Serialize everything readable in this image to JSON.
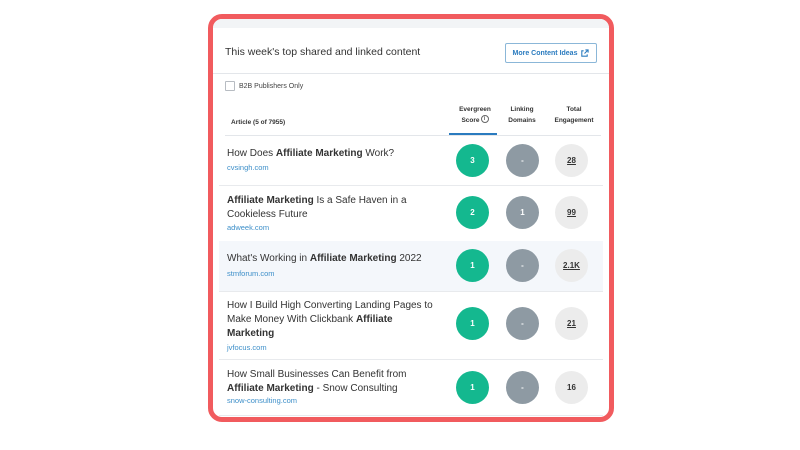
{
  "header": {
    "title": "This week's top shared and linked content",
    "ideas_button": "More Content Ideas"
  },
  "filter": {
    "label": "B2B Publishers Only",
    "checked": false
  },
  "columns": {
    "article": "Article (5 of 7955)",
    "evergreen_1": "Evergreen",
    "evergreen_2": "Score",
    "linking_1": "Linking",
    "linking_2": "Domains",
    "total_1": "Total",
    "total_2": "Engagement"
  },
  "rows": [
    {
      "title_parts": [
        [
          "How Does ",
          false
        ],
        [
          "Affiliate Marketing",
          true
        ],
        [
          " Work?",
          false
        ]
      ],
      "domain": "cvsingh.com",
      "evergreen": "3",
      "linking": "-",
      "total": "28"
    },
    {
      "title_parts": [
        [
          "Affiliate Marketing",
          true
        ],
        [
          " Is a Safe Haven in a Cookieless Future",
          false
        ]
      ],
      "domain": "adweek.com",
      "evergreen": "2",
      "linking": "1",
      "total": "99"
    },
    {
      "title_parts": [
        [
          "What's Working in ",
          false
        ],
        [
          "Affiliate Marketing",
          true
        ],
        [
          " 2022",
          false
        ]
      ],
      "domain": "stmforum.com",
      "evergreen": "1",
      "linking": "-",
      "total": "2.1K"
    },
    {
      "title_parts": [
        [
          "How I Build High Converting Landing Pages to Make Money With Clickbank ",
          false
        ],
        [
          "Affiliate Marketing",
          true
        ]
      ],
      "domain": "jvfocus.com",
      "evergreen": "1",
      "linking": "-",
      "total": "21"
    },
    {
      "title_parts": [
        [
          "How Small Businesses Can Benefit from ",
          false
        ],
        [
          "Affiliate Marketing",
          true
        ],
        [
          " - Snow Consulting",
          false
        ]
      ],
      "domain": "snow-consulting.com",
      "evergreen": "1",
      "linking": "-",
      "total": "16"
    }
  ],
  "colors": {
    "frame": "#f15b5e",
    "evergreen": "#14b88f",
    "linking": "#8e9aa3",
    "total": "#ececec",
    "link_text": "#3d8fc9"
  },
  "icons": {
    "ideas_button": "external-link-icon",
    "evergreen_info": "info-icon"
  }
}
